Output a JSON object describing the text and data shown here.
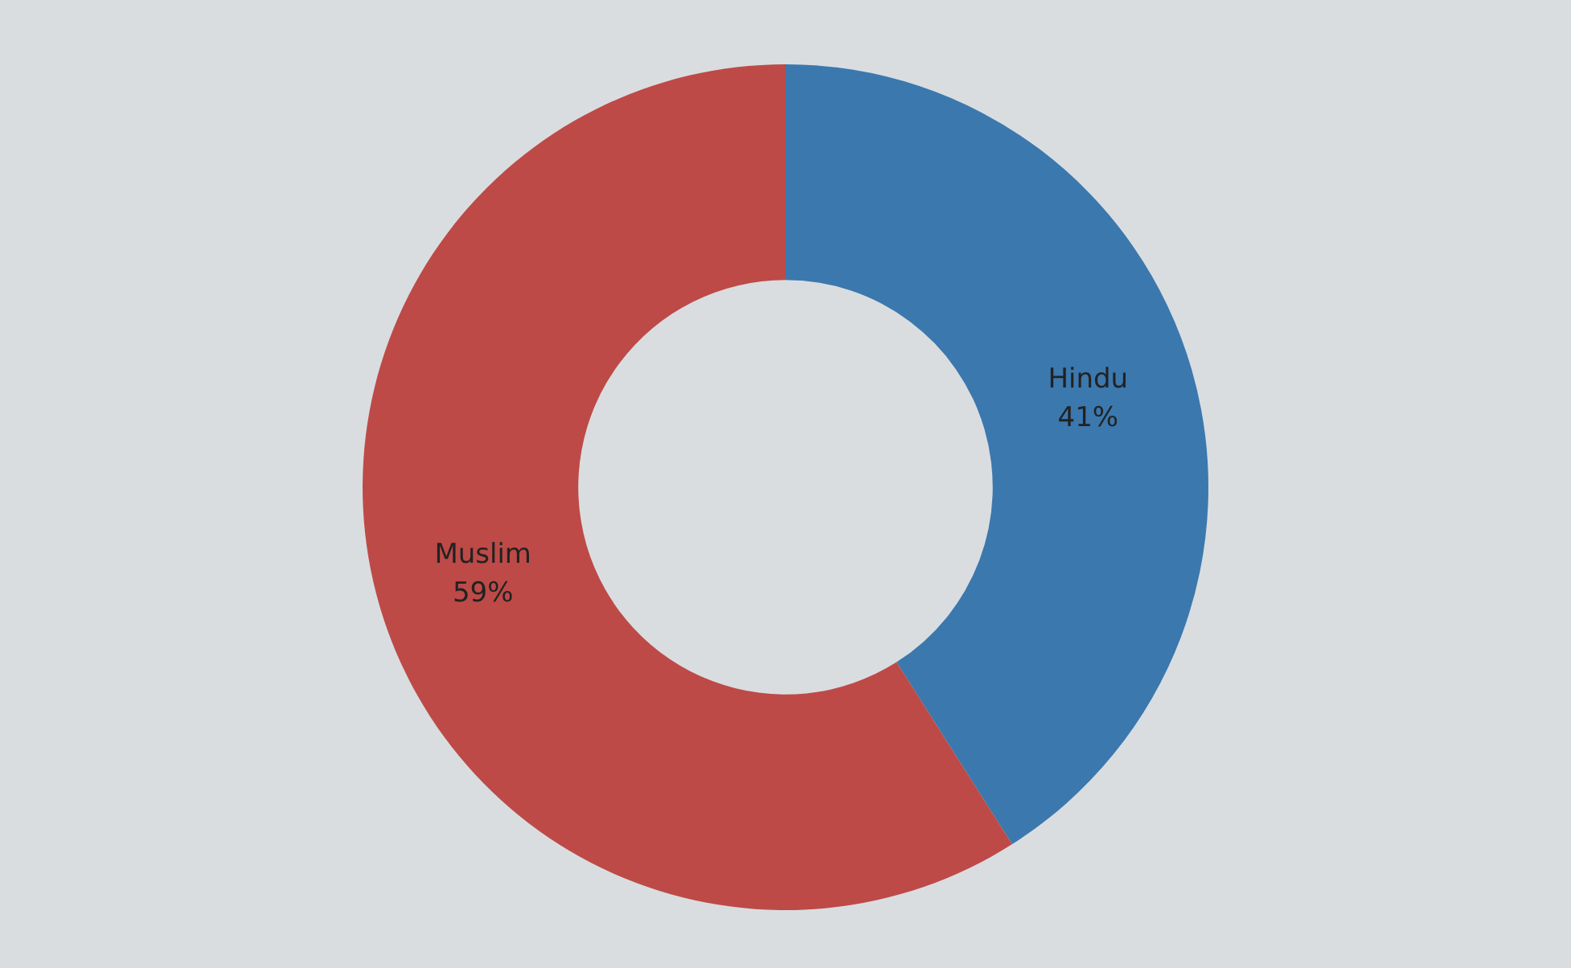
{
  "chart_data": {
    "type": "donut",
    "categories": [
      "Hindu",
      "Muslim"
    ],
    "values": [
      41,
      59
    ],
    "colors": [
      "#3b78ae",
      "#bd4a47"
    ],
    "value_labels": [
      "41%",
      "59%"
    ]
  }
}
